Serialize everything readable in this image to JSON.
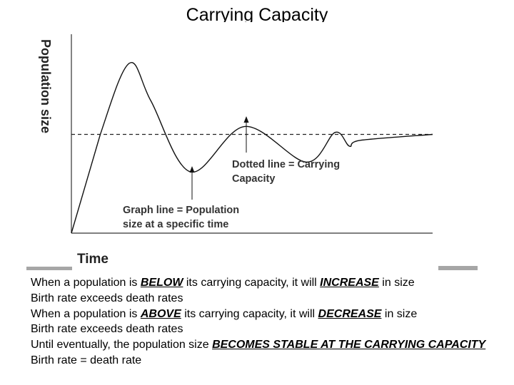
{
  "slide": {
    "title": "Carrying Capacity"
  },
  "chart_data": {
    "type": "line",
    "title": "",
    "xlabel": "Time",
    "ylabel": "Population size",
    "carrying_capacity": 5,
    "xlim": [
      0,
      10
    ],
    "ylim": [
      0,
      10
    ],
    "grid": false,
    "line_color": "#111111",
    "series": [
      {
        "x": [
          0,
          0.8,
          1.6,
          2.2,
          3.3,
          4.8,
          6.5,
          7.3,
          7.7,
          8.0,
          10
        ],
        "values": [
          0,
          5.0,
          8.6,
          6.7,
          3.1,
          5.4,
          3.6,
          5.1,
          4.4,
          4.7,
          5.0
        ]
      }
    ],
    "annotations": {
      "carrying_capacity": {
        "line1": "Dotted line = Carrying",
        "line2": "Capacity"
      },
      "population_line": {
        "line1": "Graph line = Population",
        "line2": "size at a specific time"
      }
    }
  },
  "notes": [
    {
      "pre": "When a population is ",
      "em": "BELOW",
      "post": " its carrying capacity, it will ",
      "em2": "INCREASE",
      "post2": " in size"
    },
    {
      "pre": "Birth rate exceeds death rates",
      "em": "",
      "post": "",
      "em2": "",
      "post2": ""
    },
    {
      "pre": "When a population is ",
      "em": "ABOVE",
      "post": " its carrying capacity, it will ",
      "em2": "DECREASE",
      "post2": " in size"
    },
    {
      "pre": "Birth rate exceeds death rates",
      "em": "",
      "post": "",
      "em2": "",
      "post2": ""
    },
    {
      "pre": "Until eventually, the population size ",
      "em": "BECOMES STABLE AT THE CARRYING CAPACITY",
      "post": "",
      "em2": "",
      "post2": ""
    },
    {
      "pre": "Birth rate = death rate",
      "em": "",
      "post": "",
      "em2": "",
      "post2": ""
    }
  ]
}
